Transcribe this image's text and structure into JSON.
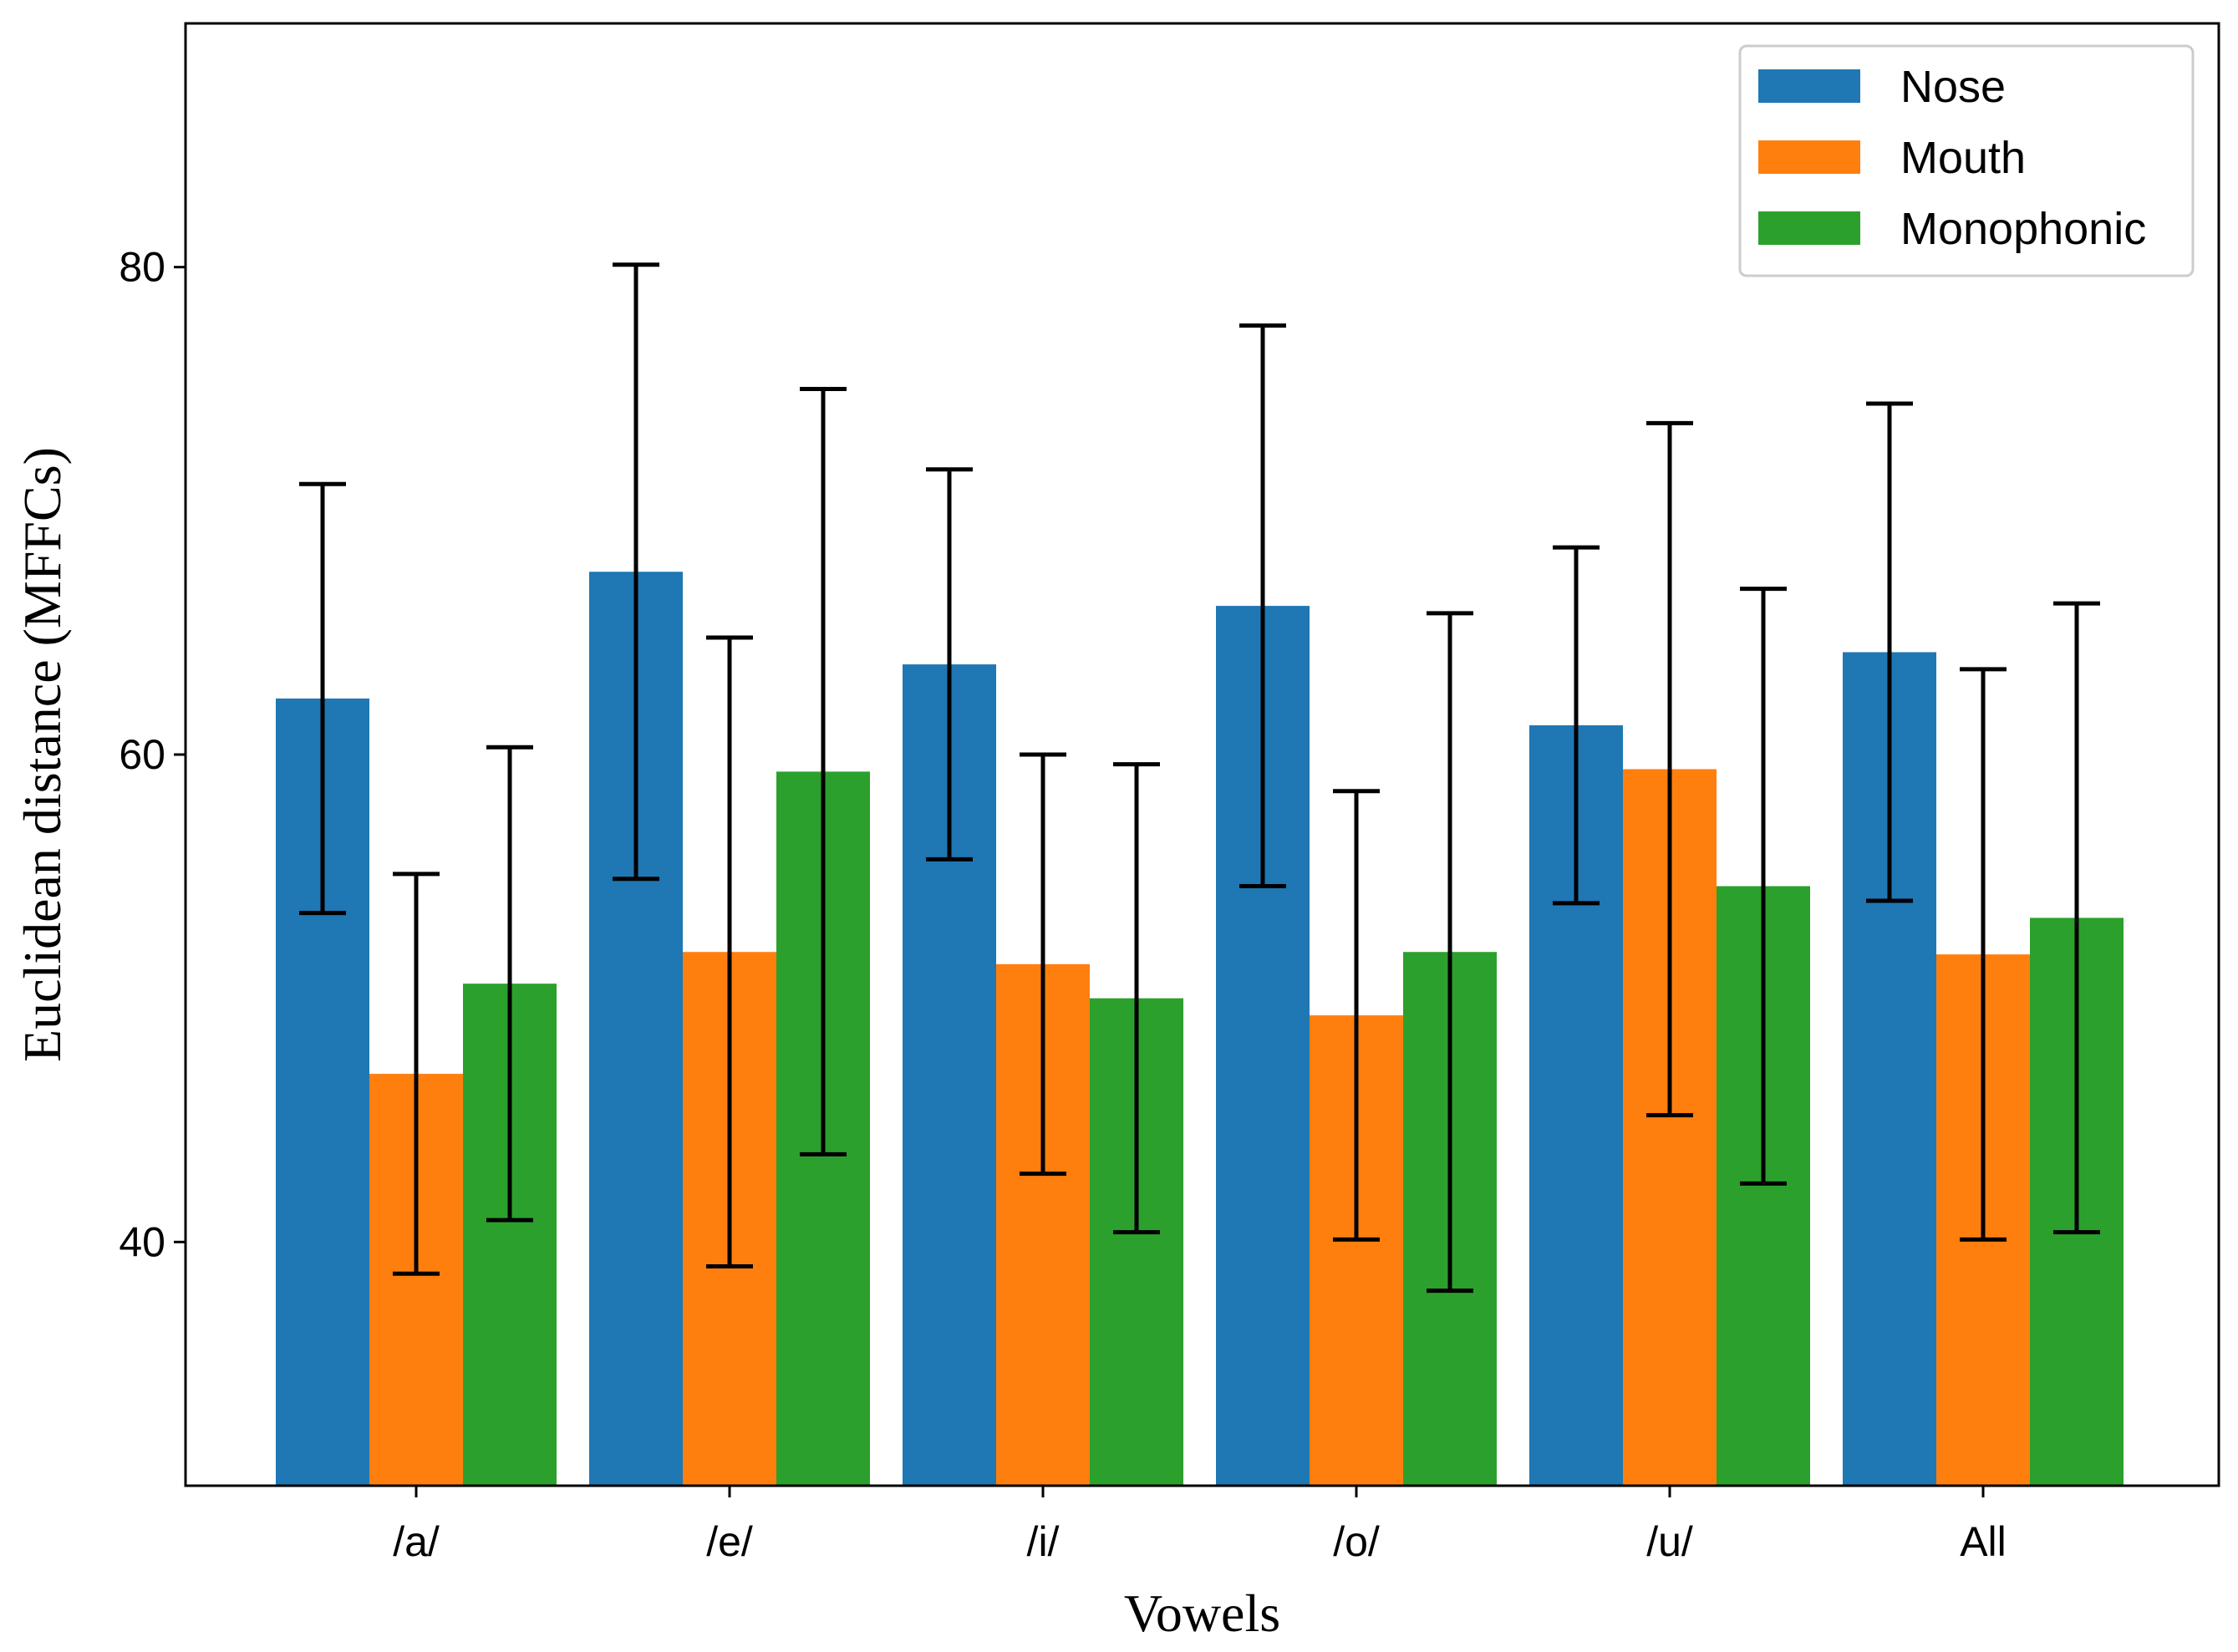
{
  "chart_data": {
    "type": "bar",
    "title": "",
    "xlabel": "Vowels",
    "ylabel": "Euclidean distance (MFFCs)",
    "ylim": [
      30,
      90
    ],
    "yticks": [
      40,
      60,
      80
    ],
    "categories": [
      "/a/",
      "/e/",
      "/i/",
      "/o/",
      "/u/",
      "All"
    ],
    "legend_position": "top-right",
    "series": [
      {
        "name": "Nose",
        "color": "#1f77b4",
        "values": [
          62.3,
          67.5,
          63.7,
          66.1,
          61.2,
          64.2
        ],
        "errors": [
          8.8,
          12.6,
          8.0,
          11.5,
          7.3,
          10.2
        ]
      },
      {
        "name": "Mouth",
        "color": "#ff7f0e",
        "values": [
          46.9,
          51.9,
          51.4,
          49.3,
          59.4,
          51.8
        ],
        "errors": [
          8.2,
          12.9,
          8.6,
          9.2,
          14.2,
          11.7
        ]
      },
      {
        "name": "Monophonic",
        "color": "#2ca02c",
        "values": [
          50.6,
          59.3,
          50.0,
          51.9,
          54.6,
          53.3
        ],
        "errors": [
          9.7,
          15.7,
          9.6,
          13.9,
          12.2,
          12.9
        ]
      }
    ]
  }
}
